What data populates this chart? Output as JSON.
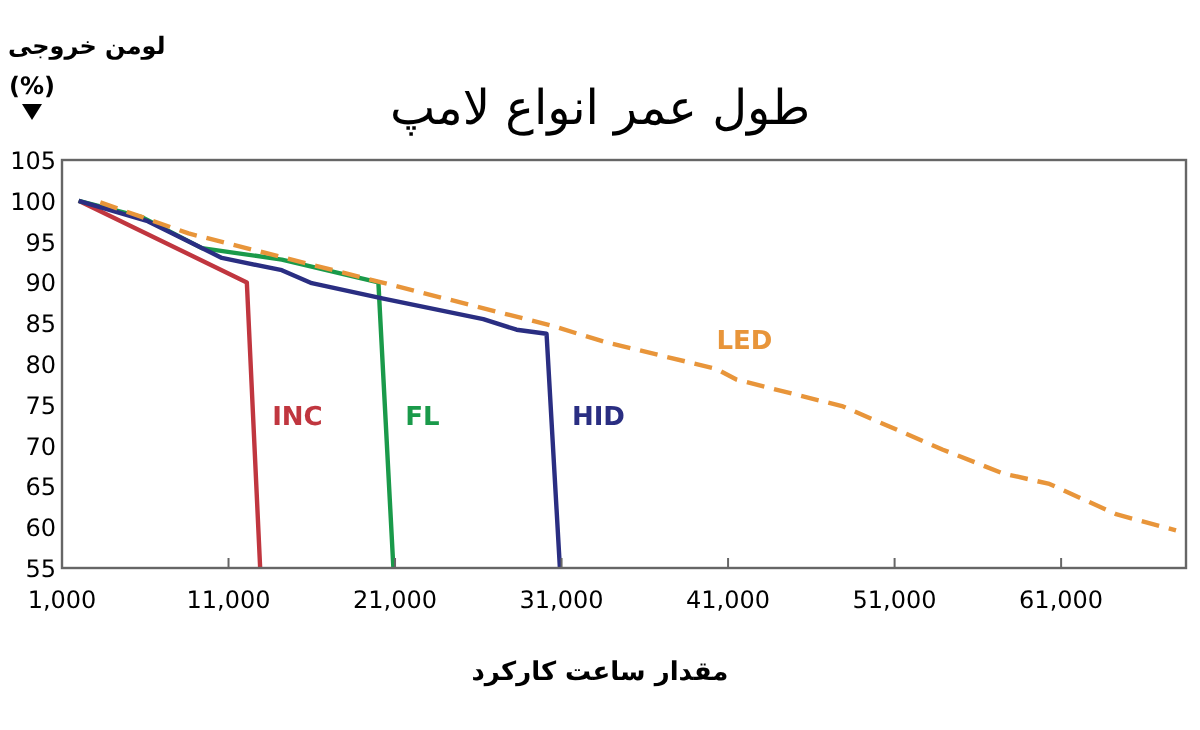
{
  "chart_data": {
    "type": "line",
    "title": "طول عمر انواع لامپ",
    "xlabel": "مقدار ساعت کارکرد",
    "ylabel": "لومن خروجی\n(%)",
    "xlim": [
      1000,
      68500
    ],
    "ylim": [
      55,
      105
    ],
    "xticks": [
      {
        "value": 1000,
        "label": "1,000"
      },
      {
        "value": 11000,
        "label": "11,000"
      },
      {
        "value": 21000,
        "label": "21,000"
      },
      {
        "value": 31000,
        "label": "31,000"
      },
      {
        "value": 41000,
        "label": "41,000"
      },
      {
        "value": 51000,
        "label": "51,000"
      },
      {
        "value": 61000,
        "label": "61,000"
      }
    ],
    "yticks": [
      55,
      60,
      65,
      70,
      75,
      80,
      85,
      90,
      95,
      100,
      105
    ],
    "grid": false,
    "marker": "none",
    "series": [
      {
        "name": "INC",
        "color": "#c0363f",
        "line_style": "solid",
        "x": [
          2000,
          12100,
          12900
        ],
        "values": [
          100,
          90,
          55
        ]
      },
      {
        "name": "FL",
        "color": "#1a9a4a",
        "line_style": "solid",
        "x": [
          2000,
          5800,
          9400,
          14200,
          20000,
          20900
        ],
        "values": [
          100,
          98,
          94.2,
          92.8,
          90,
          55
        ]
      },
      {
        "name": "HID",
        "color": "#2a2e82",
        "line_style": "solid",
        "x": [
          2000,
          6150,
          10600,
          14200,
          16000,
          20300,
          26300,
          28300,
          30100,
          30900
        ],
        "values": [
          100,
          97.5,
          93,
          91.5,
          89.9,
          88,
          85.5,
          84.2,
          83.7,
          55
        ]
      },
      {
        "name": "LED",
        "color": "#e8953a",
        "line_style": "dashed",
        "x": [
          3300,
          8600,
          20000,
          30400,
          33600,
          40300,
          41500,
          47900,
          53900,
          57500,
          60300,
          64300,
          67900
        ],
        "values": [
          99.8,
          96,
          90.1,
          84.7,
          82.7,
          79.4,
          78.1,
          74.8,
          69.5,
          66.6,
          65.3,
          61.6,
          59.6
        ]
      }
    ]
  }
}
